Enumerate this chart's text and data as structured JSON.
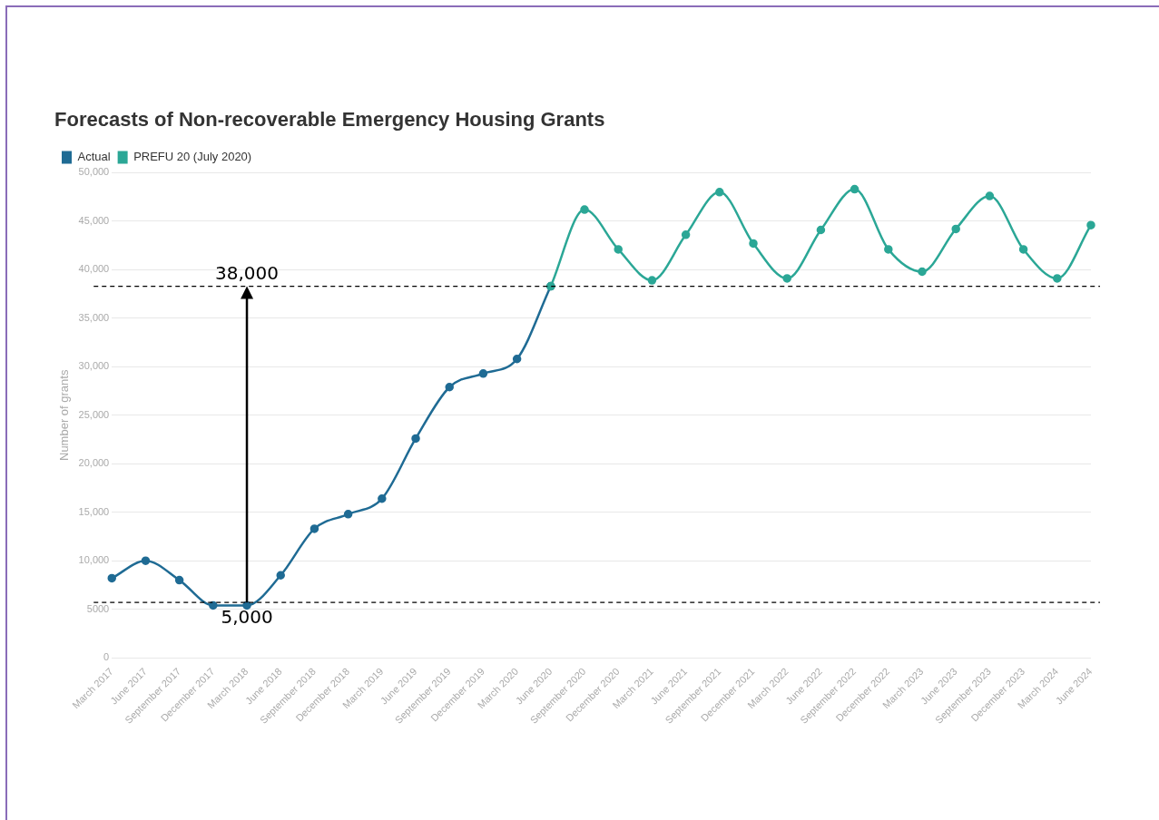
{
  "chart_data": {
    "type": "line",
    "title": "Forecasts of Non-recoverable Emergency Housing Grants",
    "ylabel": "Number of grants",
    "categories": [
      "March 2017",
      "June 2017",
      "September 2017",
      "December 2017",
      "March 2018",
      "June 2018",
      "September 2018",
      "December 2018",
      "March 2019",
      "June 2019",
      "September 2019",
      "December 2019",
      "March 2020",
      "June 2020",
      "September 2020",
      "December 2020",
      "March 2021",
      "June 2021",
      "September 2021",
      "December 2021",
      "March 2022",
      "June 2022",
      "September 2022",
      "December 2022",
      "March 2023",
      "June 2023",
      "September 2023",
      "December 2023",
      "March 2024",
      "June 2024"
    ],
    "series": [
      {
        "name": "Actual",
        "color": "#1f6b94",
        "values": [
          8200,
          10000,
          8000,
          5400,
          5400,
          8500,
          13300,
          14800,
          16400,
          22600,
          27900,
          29300,
          30800,
          38300,
          null,
          null,
          null,
          null,
          null,
          null,
          null,
          null,
          null,
          null,
          null,
          null,
          null,
          null,
          null,
          null
        ]
      },
      {
        "name": "PREFU 20 (July 2020)",
        "color": "#2ba796",
        "values": [
          null,
          null,
          null,
          null,
          null,
          null,
          null,
          null,
          null,
          null,
          null,
          null,
          null,
          38300,
          46200,
          42100,
          38900,
          43600,
          48000,
          42700,
          39100,
          44100,
          48300,
          42100,
          39800,
          44200,
          47600,
          42100,
          39100,
          44600
        ]
      }
    ],
    "ylim": [
      0,
      50000
    ],
    "yticks": [
      0,
      {
        "value": 5000,
        "label": "5000"
      },
      {
        "value": 10000,
        "label": "10,000"
      },
      {
        "value": 15000,
        "label": "15,000"
      },
      {
        "value": 20000,
        "label": "20,000"
      },
      {
        "value": 25000,
        "label": "25,000"
      },
      {
        "value": 30000,
        "label": "30,000"
      },
      {
        "value": 35000,
        "label": "35,000"
      },
      {
        "value": 40000,
        "label": "40,000"
      },
      {
        "value": 45000,
        "label": "45,000"
      },
      {
        "value": 50000,
        "label": "50,000"
      }
    ],
    "grid": "y",
    "legend": "top left",
    "marker": "circle",
    "line_style": "solid",
    "ref_lines": [
      {
        "axis": "y",
        "value": 38300,
        "color": "#000000",
        "line_style": "dashed"
      },
      {
        "axis": "y",
        "value": 5700,
        "color": "#000000",
        "line_style": "dashed"
      }
    ],
    "annotations": [
      {
        "text": "38,000",
        "x": "March 2018",
        "y": 38300
      },
      {
        "text": "5,000",
        "x": "March 2018",
        "y": 5700
      }
    ]
  }
}
